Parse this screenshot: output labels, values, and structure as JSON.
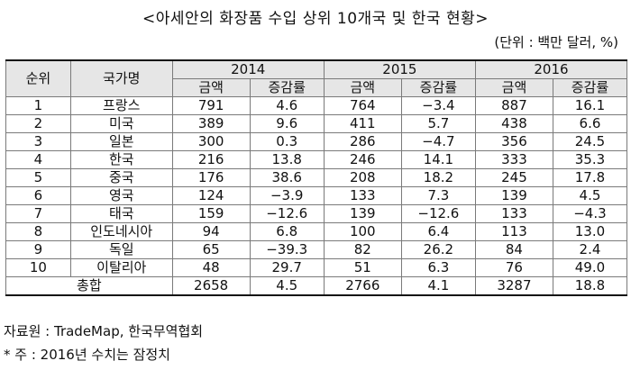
{
  "title": "<아세안의 화장품 수입 상위 10개국 및 한국 현황>",
  "unit": "(단위 : 백만 달러, %)",
  "headers": {
    "rank": "순위",
    "country": "국가명",
    "years": [
      "2014",
      "2015",
      "2016"
    ],
    "amount": "금액",
    "change": "증감률"
  },
  "rows": [
    {
      "rank": "1",
      "country": "프랑스",
      "v": [
        "791",
        "4.6",
        "764",
        "−3.4",
        "887",
        "16.1"
      ]
    },
    {
      "rank": "2",
      "country": "미국",
      "v": [
        "389",
        "9.6",
        "411",
        "5.7",
        "438",
        "6.6"
      ]
    },
    {
      "rank": "3",
      "country": "일본",
      "v": [
        "300",
        "0.3",
        "286",
        "−4.7",
        "356",
        "24.5"
      ]
    },
    {
      "rank": "4",
      "country": "한국",
      "v": [
        "216",
        "13.8",
        "246",
        "14.1",
        "333",
        "35.3"
      ]
    },
    {
      "rank": "5",
      "country": "중국",
      "v": [
        "176",
        "38.6",
        "208",
        "18.2",
        "245",
        "17.8"
      ]
    },
    {
      "rank": "6",
      "country": "영국",
      "v": [
        "124",
        "−3.9",
        "133",
        "7.3",
        "139",
        "4.5"
      ]
    },
    {
      "rank": "7",
      "country": "태국",
      "v": [
        "159",
        "−12.6",
        "139",
        "−12.6",
        "133",
        "−4.3"
      ]
    },
    {
      "rank": "8",
      "country": "인도네시아",
      "v": [
        "94",
        "6.8",
        "100",
        "6.4",
        "113",
        "13.0"
      ]
    },
    {
      "rank": "9",
      "country": "독일",
      "v": [
        "65",
        "−39.3",
        "82",
        "26.2",
        "84",
        "2.4"
      ]
    },
    {
      "rank": "10",
      "country": "이탈리아",
      "v": [
        "48",
        "29.7",
        "51",
        "6.3",
        "76",
        "49.0"
      ]
    }
  ],
  "total": {
    "label": "총합",
    "v": [
      "2658",
      "4.5",
      "2766",
      "4.1",
      "3287",
      "18.8"
    ]
  },
  "notes": {
    "source": "자료원 : TradeMap, 한국무역협회",
    "footnote": "* 주 : 2016년 수치는 잠정치"
  }
}
